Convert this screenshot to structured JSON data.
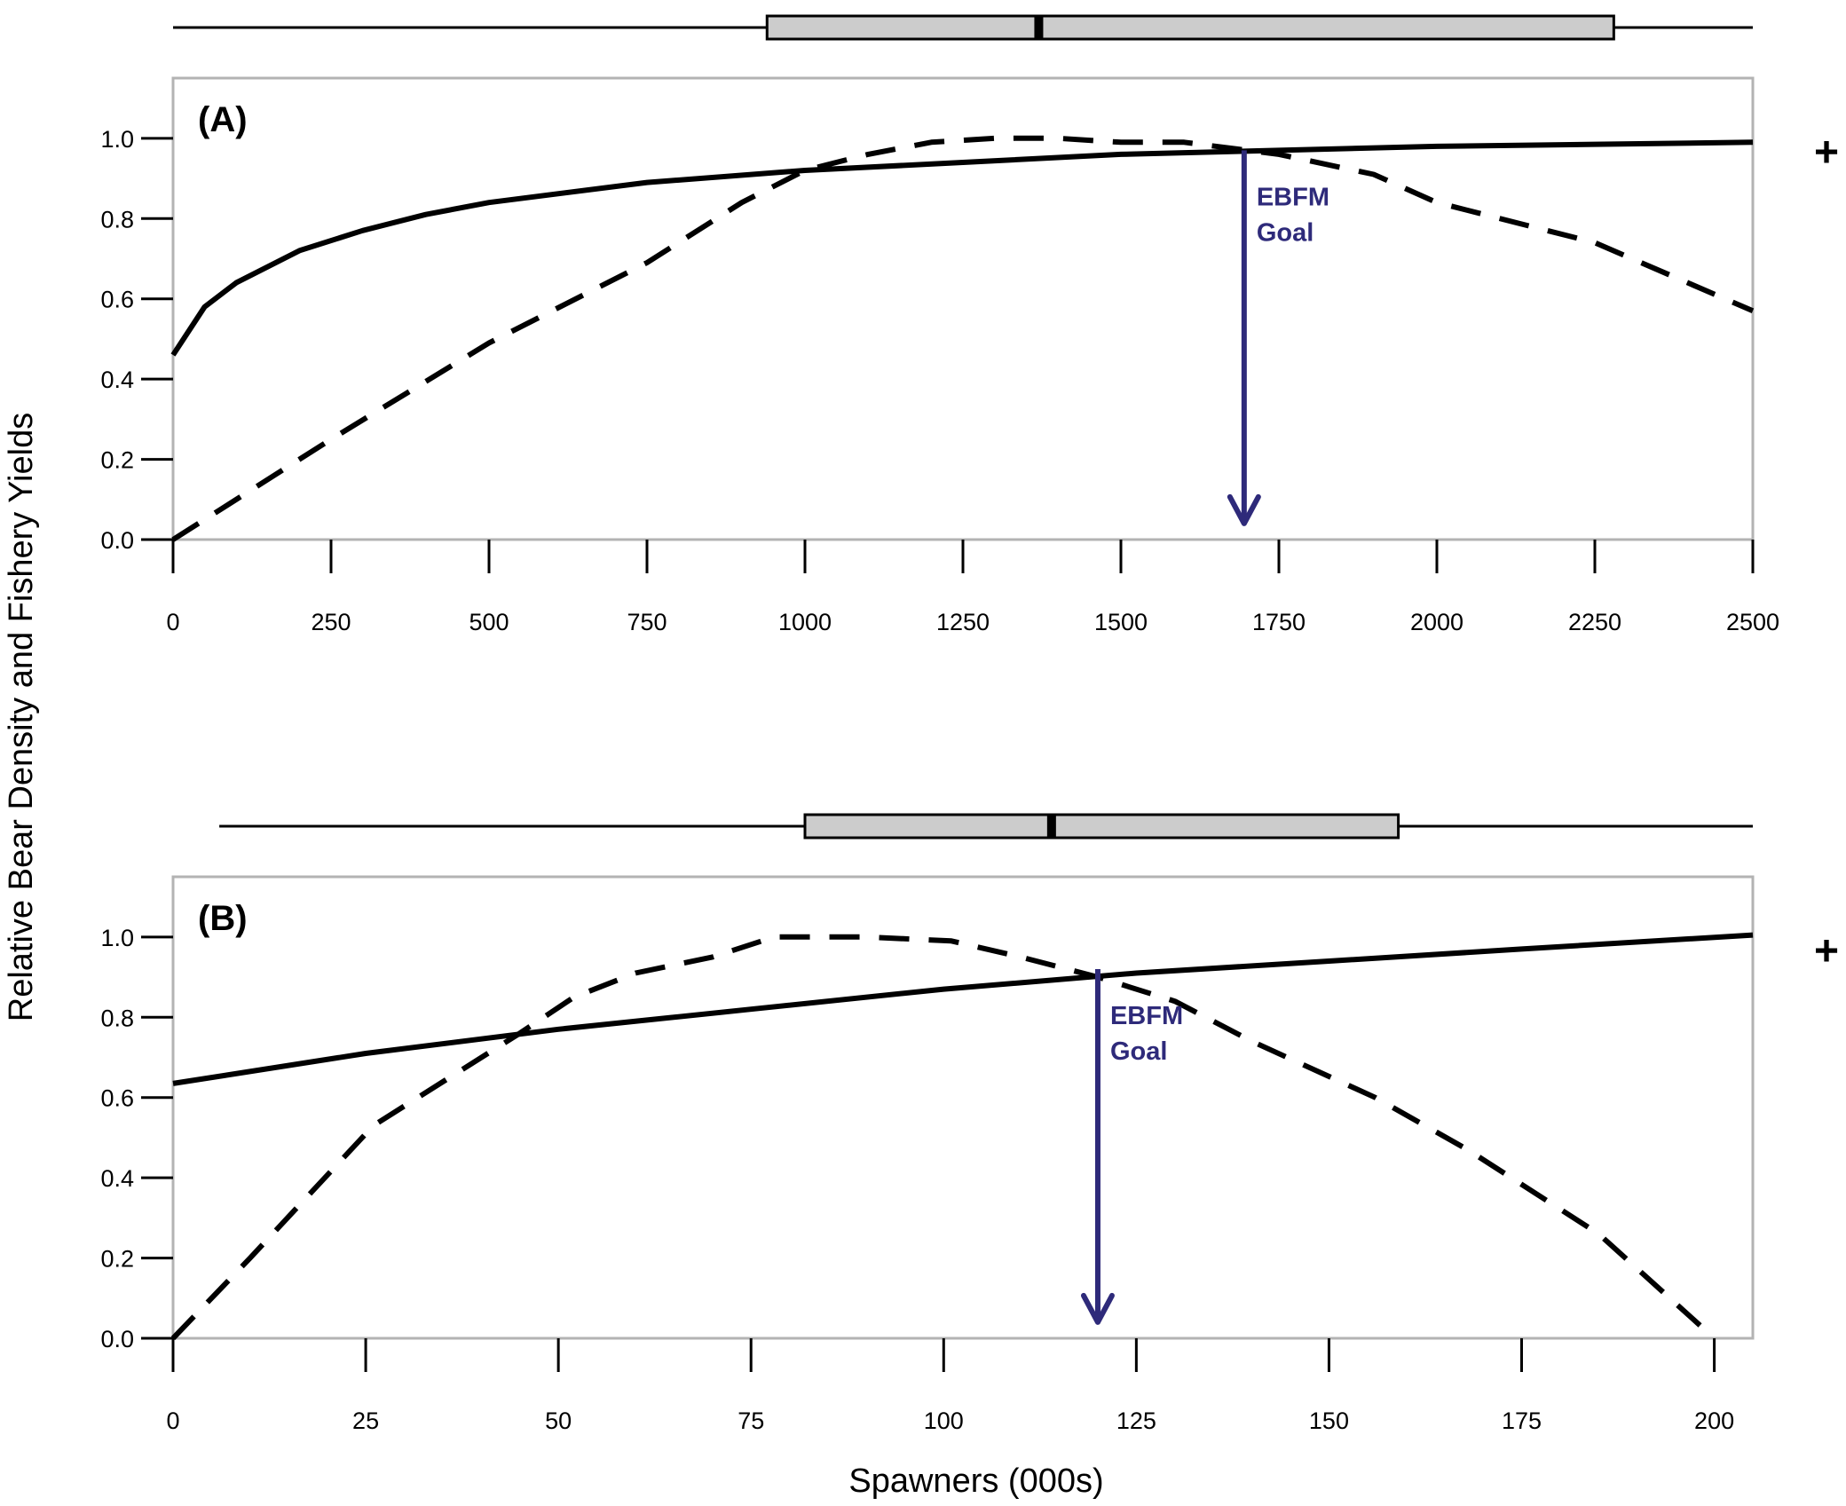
{
  "figure": {
    "ylabel": "Relative Bear Density and Fishery Yields",
    "xlabel": "Spawners (000s)",
    "colors": {
      "frame": "#b3b3b3",
      "curve": "#000000",
      "arrow": "#2e2a7a",
      "box_fill": "#cccccc"
    }
  },
  "chart_data": [
    {
      "type": "line",
      "panel_label": "(A)",
      "xlim": [
        0,
        2500
      ],
      "ylim": [
        0,
        1.15
      ],
      "x_ticks": [
        0,
        250,
        500,
        750,
        1000,
        1250,
        1500,
        1750,
        2000,
        2250,
        2500
      ],
      "x_tick_labels": [
        "0",
        "250",
        "500",
        "750",
        "1000",
        "1250",
        "1500",
        "1750",
        "2000",
        "2250",
        "2500"
      ],
      "y_ticks": [
        0,
        0.2,
        0.4,
        0.6,
        0.8,
        1.0
      ],
      "y_tick_labels": [
        "0.0",
        "0.2",
        "0.4",
        "0.6",
        "0.8",
        "1.0"
      ],
      "grid": false,
      "series": [
        {
          "style": "solid",
          "x": [
            0,
            50,
            100,
            200,
            300,
            400,
            500,
            750,
            1000,
            1250,
            1500,
            1750,
            2000,
            2250,
            2500
          ],
          "y": [
            0.46,
            0.58,
            0.64,
            0.72,
            0.77,
            0.81,
            0.84,
            0.89,
            0.92,
            0.94,
            0.96,
            0.97,
            0.98,
            0.985,
            0.99
          ]
        },
        {
          "style": "dashed",
          "x": [
            0,
            100,
            250,
            500,
            750,
            900,
            1000,
            1100,
            1200,
            1300,
            1400,
            1500,
            1600,
            1700,
            1750,
            1900,
            2000,
            2250,
            2500
          ],
          "y": [
            0,
            0.1,
            0.25,
            0.49,
            0.69,
            0.84,
            0.92,
            0.96,
            0.99,
            1.0,
            1.0,
            0.99,
            0.99,
            0.97,
            0.96,
            0.91,
            0.84,
            0.74,
            0.57
          ]
        }
      ],
      "annotation": {
        "text_lines": [
          "EBFM",
          "Goal"
        ],
        "x": 1695,
        "y_from": 0.97,
        "y_to": 0.04
      },
      "boxplot": {
        "whisker_low": 0,
        "q1": 940,
        "median": 1370,
        "q3": 2280,
        "whisker_high": 2500,
        "outlier_marker": "+"
      }
    },
    {
      "type": "line",
      "panel_label": "(B)",
      "xlim": [
        0,
        205
      ],
      "ylim": [
        0,
        1.15
      ],
      "x_ticks": [
        0,
        25,
        50,
        75,
        100,
        125,
        150,
        175,
        200
      ],
      "x_tick_labels": [
        "0",
        "25",
        "50",
        "75",
        "100",
        "125",
        "150",
        "175",
        "200"
      ],
      "y_ticks": [
        0,
        0.2,
        0.4,
        0.6,
        0.8,
        1.0
      ],
      "y_tick_labels": [
        "0.0",
        "0.2",
        "0.4",
        "0.6",
        "0.8",
        "1.0"
      ],
      "grid": false,
      "series": [
        {
          "style": "solid",
          "x": [
            0,
            25,
            50,
            75,
            100,
            125,
            150,
            175,
            205
          ],
          "y": [
            0.635,
            0.71,
            0.77,
            0.82,
            0.87,
            0.91,
            0.94,
            0.97,
            1.005
          ]
        },
        {
          "style": "dashed",
          "x": [
            0,
            10,
            26,
            45,
            52,
            60,
            70,
            78,
            90,
            101,
            110,
            120,
            130,
            140,
            156,
            168,
            185,
            200
          ],
          "y": [
            0,
            0.2,
            0.53,
            0.76,
            0.85,
            0.91,
            0.95,
            1.0,
            1.0,
            0.99,
            0.95,
            0.9,
            0.84,
            0.74,
            0.6,
            0.47,
            0.26,
            0
          ]
        }
      ],
      "annotation": {
        "text_lines": [
          "EBFM",
          "Goal"
        ],
        "x": 120,
        "y_from": 0.92,
        "y_to": 0.04
      },
      "boxplot": {
        "whisker_low": 6,
        "q1": 82,
        "median": 114,
        "q3": 159,
        "whisker_high": 205,
        "outlier_marker": "+"
      }
    }
  ]
}
